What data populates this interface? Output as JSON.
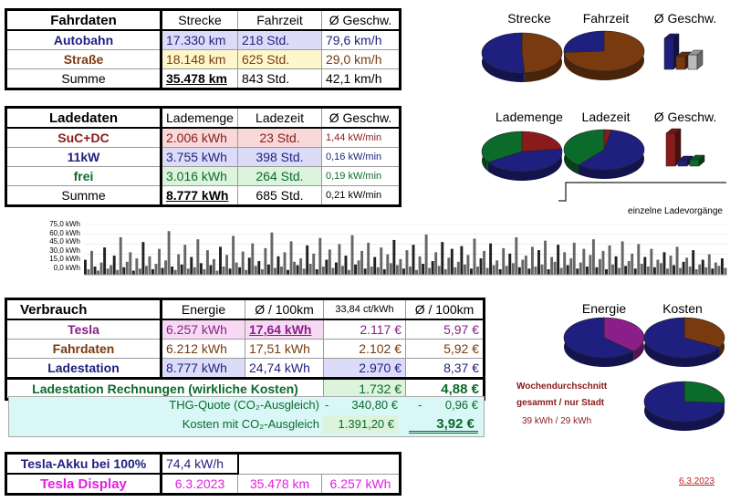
{
  "fahrdaten": {
    "headers": [
      "Fahrdaten",
      "Strecke",
      "Fahrzeit",
      "Ø Geschw."
    ],
    "rows": [
      {
        "label": "Autobahn",
        "strecke": "17.330 km",
        "fahrzeit": "218 Std.",
        "geschw": "79,6 km/h"
      },
      {
        "label": "Straße",
        "strecke": "18.148 km",
        "fahrzeit": "625 Std.",
        "geschw": "29,0 km/h"
      },
      {
        "label": "Summe",
        "strecke": "35.478 km",
        "fahrzeit": "843 Std.",
        "geschw": "42,1 km/h"
      }
    ]
  },
  "ladedaten": {
    "headers": [
      "Ladedaten",
      "Lademenge",
      "Ladezeit",
      "Ø Geschw."
    ],
    "rows": [
      {
        "label": "SuC+DC",
        "menge": "2.006 kWh",
        "zeit": "23 Std.",
        "geschw": "1,44 kW/min"
      },
      {
        "label": "11kW",
        "menge": "3.755 kWh",
        "zeit": "398 Std.",
        "geschw": "0,16 kW/min"
      },
      {
        "label": "frei",
        "menge": "3.016 kWh",
        "zeit": "264 Std.",
        "geschw": "0,19 kW/min"
      },
      {
        "label": "Summe",
        "menge": "8.777 kWh",
        "zeit": "685 Std.",
        "geschw": "0,21 kW/min"
      }
    ]
  },
  "pie_labels_top": [
    "Strecke",
    "Fahrzeit",
    "Ø Geschw."
  ],
  "pie_labels_mid": [
    "Lademenge",
    "Ladezeit",
    "Ø Geschw."
  ],
  "pie_labels_bottom": [
    "Energie",
    "Kosten"
  ],
  "ladevorgaenge_title": "einzelne Ladevorgänge",
  "verbrauch": {
    "headers": [
      "Verbrauch",
      "Energie",
      "Ø / 100km",
      "33,84 ct/kWh",
      "Ø / 100km"
    ],
    "rows": [
      {
        "label": "Tesla",
        "energie": "6.257 kWh",
        "per100": "17,64 kWh",
        "kosten": "2.117 €",
        "kosten100": "5,97 €"
      },
      {
        "label": "Fahrdaten",
        "energie": "6.212 kWh",
        "per100": "17,51 kWh",
        "kosten": "2.102 €",
        "kosten100": "5,92 €"
      },
      {
        "label": "Ladestation",
        "energie": "8.777 kWh",
        "per100": "24,74 kWh",
        "kosten": "2.970 €",
        "kosten100": "8,37 €"
      }
    ],
    "rechnungen": {
      "label": "Ladestation Rechnungen (wirkliche Kosten)",
      "kosten": "1.732 €",
      "kosten100": "4,88 €"
    },
    "thg": {
      "label": "THG-Quote (CO₂-Ausgleich)",
      "sign1": "-",
      "kosten": "340,80 €",
      "sign2": "-",
      "kosten100": "0,96 €"
    },
    "mit_co2": {
      "label": "Kosten mit CO₂-Ausgleich",
      "kosten": "1.391,20 €",
      "kosten100": "3,92 €"
    }
  },
  "wochen": {
    "line1": "Wochendurchschnitt",
    "line2": "gesammt / nur Stadt",
    "line3": "39 kWh / 29 kWh"
  },
  "akku": {
    "label": "Tesla-Akku bei 100%",
    "value": "74,4 kW/h"
  },
  "display": {
    "label": "Tesla Display",
    "date": "6.3.2023",
    "km": "35.478 km",
    "kwh": "6.257 kWh"
  },
  "footer_date": "6.3.2023",
  "colors": {
    "navy": "#1f1f80",
    "brown": "#7a3a10",
    "darkred": "#8b1a1a",
    "green": "#0b6b2b",
    "purple": "#8a1f8a",
    "magenta": "#e020e0"
  },
  "chart_data": {
    "type": "bar",
    "ylim": [
      0,
      75
    ],
    "yticks": [
      "75,0 kWh",
      "60,0 kWh",
      "45,0 kWh",
      "30,0 kWh",
      "15,0 kWh",
      "0,0 kWh"
    ],
    "values": [
      22,
      8,
      35,
      12,
      6,
      18,
      40,
      9,
      14,
      28,
      7,
      55,
      11,
      19,
      33,
      6,
      24,
      9,
      48,
      13,
      27,
      8,
      16,
      38,
      10,
      21,
      64,
      12,
      7,
      30,
      15,
      44,
      9,
      26,
      11,
      52,
      17,
      8,
      36,
      14,
      23,
      6,
      41,
      12,
      29,
      9,
      57,
      18,
      11,
      34,
      7,
      25,
      46,
      13,
      20,
      8,
      39,
      15,
      62,
      10,
      27,
      12,
      33,
      7,
      49,
      19,
      14,
      24,
      9,
      43,
      16,
      31,
      8,
      54,
      12,
      22,
      37,
      10,
      18,
      45,
      13,
      28,
      7,
      58,
      15,
      21,
      35,
      9,
      47,
      12,
      26,
      11,
      40,
      8,
      30,
      17,
      51,
      14,
      23,
      9,
      36,
      12,
      44,
      7,
      27,
      16,
      59,
      10,
      20,
      33,
      13,
      48,
      8,
      25,
      38,
      11,
      19,
      42,
      15,
      29,
      9,
      53,
      12,
      24,
      35,
      10,
      46,
      14,
      21,
      8,
      39,
      13,
      31,
      17,
      55,
      11,
      22,
      28,
      9,
      41,
      12,
      36,
      15,
      50,
      8,
      26,
      19,
      44,
      10,
      33,
      14,
      24,
      47,
      9,
      18,
      38,
      12,
      29,
      52,
      11,
      23,
      35,
      8,
      43,
      15,
      27,
      10,
      49,
      13,
      20,
      31,
      9,
      45,
      16,
      26,
      12,
      38,
      11,
      22,
      17,
      33,
      9,
      28,
      14,
      41,
      10,
      19,
      25,
      12,
      36,
      8,
      15,
      22,
      11,
      30,
      9,
      18,
      13,
      24,
      10
    ]
  },
  "pies": {
    "strecke": [
      {
        "v": 49,
        "c": "#7a3a10"
      },
      {
        "v": 51,
        "c": "#1f1f80"
      }
    ],
    "fahrzeit": [
      {
        "v": 74,
        "c": "#7a3a10"
      },
      {
        "v": 26,
        "c": "#1f1f80"
      }
    ],
    "lademenge": [
      {
        "v": 23,
        "c": "#8b1a1a"
      },
      {
        "v": 43,
        "c": "#1f1f80"
      },
      {
        "v": 34,
        "c": "#0b6b2b"
      }
    ],
    "ladezeit": [
      {
        "v": 3,
        "c": "#8b1a1a"
      },
      {
        "v": 58,
        "c": "#1f1f80"
      },
      {
        "v": 39,
        "c": "#0b6b2b"
      }
    ],
    "energie": [
      {
        "v": 37,
        "c": "#8a1f8a"
      },
      {
        "v": 63,
        "c": "#1f1f80"
      }
    ],
    "kosten": [
      {
        "v": 33,
        "c": "#7a3a10"
      },
      {
        "v": 67,
        "c": "#1f1f80"
      }
    ],
    "wochen": [
      {
        "v": 26,
        "c": "#0b6b2b"
      },
      {
        "v": 74,
        "c": "#1f1f80"
      }
    ]
  }
}
